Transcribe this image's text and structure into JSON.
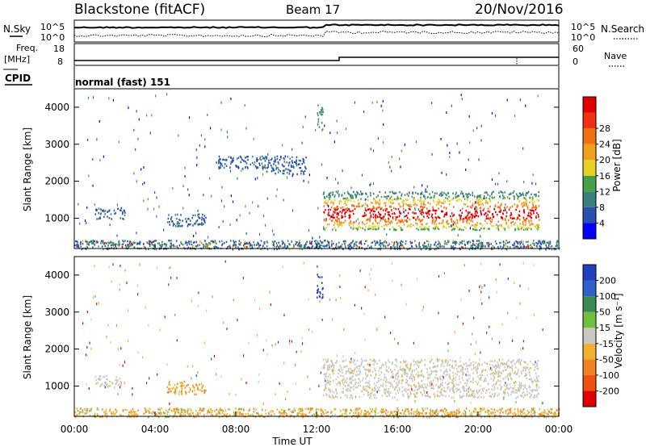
{
  "header": {
    "radar": "Blackstone (fitACF)",
    "beam": "Beam 17",
    "date": "20/Nov/2016"
  },
  "strips": {
    "nsky_label": "N.Sky",
    "nsearch_label": "N.Search",
    "nsky_ticks": [
      "10^5",
      "10^0"
    ],
    "nsearch_ticks": [
      "10^5",
      "10^0"
    ],
    "freq_label_1": "Freq.",
    "freq_label_2": "[MHz]",
    "freq_ticks": [
      "18",
      "8"
    ],
    "nave_label": "Nave",
    "nave_ticks": [
      "60",
      "0"
    ],
    "cpid_label": "CPID",
    "cpid_value": "normal (fast) 151"
  },
  "chart_data": [
    {
      "type": "heatmap",
      "name": "power",
      "ylabel": "Slant Range [km]",
      "ylim": [
        180,
        4500
      ],
      "yticks": [
        1000,
        2000,
        3000,
        4000
      ],
      "colorbar_label": "Power [dB]",
      "colorbar_ticks": [
        "4",
        "8",
        "12",
        "16",
        "20",
        "24",
        "28"
      ],
      "colorbar_colors": [
        "#0000ff",
        "#2a4fb0",
        "#3b7f7a",
        "#46a04a",
        "#e8d020",
        "#f0a020",
        "#f07010",
        "#f03010",
        "#e00000"
      ],
      "scatter_regions": [
        {
          "t0": 0.0,
          "t1": 24.0,
          "r0": 180,
          "r1": 420,
          "level": "mixed-low"
        },
        {
          "t0": 1.0,
          "t1": 2.5,
          "r0": 1000,
          "r1": 1300,
          "level": "low"
        },
        {
          "t0": 4.5,
          "t1": 6.5,
          "r0": 800,
          "r1": 1150,
          "level": "low"
        },
        {
          "t0": 7.0,
          "t1": 9.5,
          "r0": 2350,
          "r1": 2700,
          "level": "low"
        },
        {
          "t0": 9.5,
          "t1": 11.5,
          "r0": 2200,
          "r1": 2700,
          "level": "low"
        },
        {
          "t0": 12.0,
          "t1": 12.3,
          "r0": 3400,
          "r1": 4100,
          "level": "mid"
        },
        {
          "t0": 12.3,
          "t1": 23.0,
          "r0": 700,
          "r1": 1750,
          "level": "band-high"
        }
      ]
    },
    {
      "type": "heatmap",
      "name": "velocity",
      "xlabel": "Time UT",
      "ylabel": "Slant Range [km]",
      "ylim": [
        180,
        4500
      ],
      "yticks": [
        1000,
        2000,
        3000,
        4000
      ],
      "xticks": [
        "00:00",
        "04:00",
        "08:00",
        "12:00",
        "16:00",
        "20:00",
        "00:00"
      ],
      "colorbar_label": "Velocity [m s⁻¹]",
      "colorbar_ticks": [
        "200",
        "100",
        "50",
        "15",
        "-15",
        "-50",
        "-100",
        "-200"
      ],
      "colorbar_colors": [
        "#2040c0",
        "#3060c8",
        "#3a8a55",
        "#70c040",
        "#c8c8c0",
        "#f0b030",
        "#f08020",
        "#f05010",
        "#e00000"
      ],
      "scatter_regions": [
        {
          "t0": 0.0,
          "t1": 24.0,
          "r0": 180,
          "r1": 420,
          "level": "orange-green"
        },
        {
          "t0": 1.0,
          "t1": 2.5,
          "r0": 1000,
          "r1": 1300,
          "level": "grey"
        },
        {
          "t0": 4.5,
          "t1": 6.5,
          "r0": 800,
          "r1": 1150,
          "level": "orange"
        },
        {
          "t0": 12.0,
          "t1": 12.3,
          "r0": 3400,
          "r1": 4100,
          "level": "blue"
        },
        {
          "t0": 12.3,
          "t1": 23.0,
          "r0": 700,
          "r1": 1750,
          "level": "grey"
        }
      ]
    }
  ]
}
